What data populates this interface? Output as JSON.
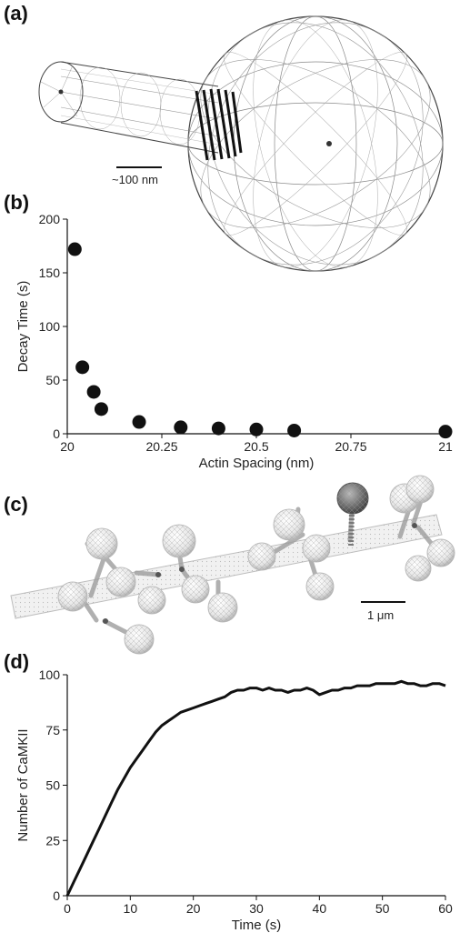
{
  "panels": {
    "a": {
      "label": "(a)",
      "scale_bar_label": "~100 nm"
    },
    "b": {
      "label": "(b)"
    },
    "c": {
      "label": "(c)",
      "scale_bar_label": "1 μm"
    },
    "d": {
      "label": "(d)"
    }
  },
  "chart_data": [
    {
      "panel": "b",
      "type": "scatter",
      "xlabel": "Actin Spacing (nm)",
      "ylabel": "Decay Time (s)",
      "xlim": [
        20,
        21
      ],
      "ylim": [
        0,
        200
      ],
      "xticks": [
        20,
        20.25,
        20.5,
        20.75,
        21
      ],
      "xtick_labels": [
        "20",
        "20.25",
        "20.5",
        "20.75",
        "21"
      ],
      "yticks": [
        0,
        50,
        100,
        150,
        200
      ],
      "ytick_labels": [
        "0",
        "50",
        "100",
        "150",
        "200"
      ],
      "grid": false,
      "marker_color": "#111111",
      "x": [
        20.02,
        20.04,
        20.07,
        20.09,
        20.19,
        20.3,
        20.4,
        20.5,
        20.6,
        21.0
      ],
      "y": [
        172,
        62,
        39,
        23,
        11,
        6,
        5,
        4,
        3,
        2
      ]
    },
    {
      "panel": "d",
      "type": "line",
      "xlabel": "Time (s)",
      "ylabel": "Number of CaMKII",
      "xlim": [
        0,
        60
      ],
      "ylim": [
        0,
        100
      ],
      "xticks": [
        0,
        10,
        20,
        30,
        40,
        50,
        60
      ],
      "xtick_labels": [
        "0",
        "10",
        "20",
        "30",
        "40",
        "50",
        "60"
      ],
      "yticks": [
        0,
        25,
        50,
        75,
        100
      ],
      "ytick_labels": [
        "0",
        "25",
        "50",
        "75",
        "100"
      ],
      "grid": false,
      "line_color": "#111111",
      "x": [
        0,
        1,
        2,
        3,
        4,
        5,
        6,
        7,
        8,
        9,
        10,
        11,
        12,
        13,
        14,
        15,
        16,
        17,
        18,
        19,
        20,
        21,
        22,
        23,
        24,
        25,
        26,
        27,
        28,
        29,
        30,
        31,
        32,
        33,
        34,
        35,
        36,
        37,
        38,
        39,
        40,
        41,
        42,
        43,
        44,
        45,
        46,
        47,
        48,
        49,
        50,
        51,
        52,
        53,
        54,
        55,
        56,
        57,
        58,
        59,
        60
      ],
      "y": [
        0,
        6,
        12,
        18,
        24,
        30,
        36,
        42,
        48,
        53,
        58,
        62,
        66,
        70,
        74,
        77,
        79,
        81,
        83,
        84,
        85,
        86,
        87,
        88,
        89,
        90,
        92,
        93,
        93,
        94,
        94,
        93,
        94,
        93,
        93,
        92,
        93,
        93,
        94,
        93,
        91,
        92,
        93,
        93,
        94,
        94,
        95,
        95,
        95,
        96,
        96,
        96,
        96,
        97,
        96,
        96,
        95,
        95,
        96,
        96,
        95
      ]
    }
  ]
}
